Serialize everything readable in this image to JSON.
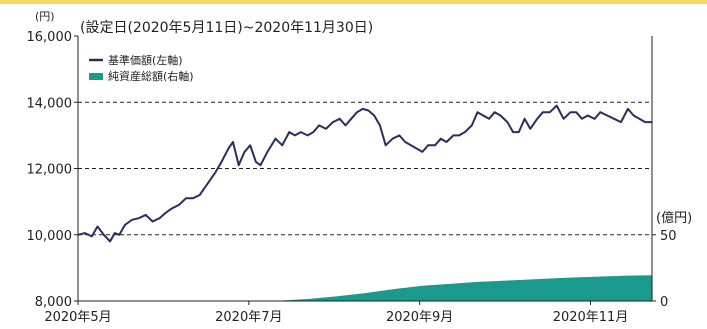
{
  "chart_data": {
    "type": "line",
    "title": "(設定日(2020年5月11日)~2020年11月30日)",
    "colors": {
      "nav_line": "#2a2f5e",
      "assets_area": "#1a9a8c",
      "grid": "#222222"
    },
    "left_axis": {
      "unit": "(円)",
      "ticks": [
        "16,000",
        "14,000",
        "12,000",
        "10,000",
        "8,000"
      ],
      "tick_values": [
        16000,
        14000,
        12000,
        10000,
        8000
      ],
      "range": [
        8000,
        16000
      ]
    },
    "right_axis": {
      "unit": "(億円)",
      "ticks": [
        "50",
        "0"
      ],
      "tick_values": [
        50,
        0
      ],
      "range": [
        0,
        50
      ]
    },
    "x_axis": {
      "ticks": [
        "2020年5月",
        "2020年7月",
        "2020年9月",
        "2020年11月"
      ],
      "tick_positions": [
        0.0,
        0.2976,
        0.5952,
        0.8929
      ]
    },
    "grid": {
      "horizontal_dashed": [
        10000,
        12000,
        14000
      ]
    },
    "legend": {
      "placement": "top-left",
      "items": [
        {
          "label": "基準価額(左軸)",
          "kind": "line"
        },
        {
          "label": "純資産総額(右軸)",
          "kind": "area"
        }
      ]
    },
    "series": [
      {
        "name": "基準価額(左軸)",
        "axis": "left",
        "x": [
          0,
          0.012,
          0.024,
          0.034,
          0.045,
          0.056,
          0.064,
          0.072,
          0.082,
          0.094,
          0.106,
          0.118,
          0.13,
          0.142,
          0.152,
          0.164,
          0.176,
          0.188,
          0.2,
          0.212,
          0.224,
          0.232,
          0.24,
          0.25,
          0.262,
          0.27,
          0.28,
          0.29,
          0.3,
          0.31,
          0.318,
          0.33,
          0.344,
          0.356,
          0.368,
          0.378,
          0.388,
          0.4,
          0.41,
          0.42,
          0.432,
          0.444,
          0.456,
          0.466,
          0.476,
          0.486,
          0.496,
          0.506,
          0.516,
          0.526,
          0.536,
          0.548,
          0.56,
          0.57,
          0.58,
          0.59,
          0.6,
          0.61,
          0.622,
          0.632,
          0.642,
          0.654,
          0.664,
          0.674,
          0.686,
          0.696,
          0.706,
          0.716,
          0.726,
          0.736,
          0.748,
          0.758,
          0.768,
          0.778,
          0.788,
          0.8,
          0.81,
          0.822,
          0.834,
          0.846,
          0.858,
          0.868,
          0.878,
          0.888,
          0.9,
          0.91,
          0.922,
          0.934,
          0.946,
          0.958,
          0.968,
          0.978,
          0.988,
          1.0
        ],
        "values": [
          10000,
          10050,
          9950,
          10250,
          10000,
          9800,
          10050,
          10000,
          10300,
          10450,
          10500,
          10600,
          10400,
          10500,
          10650,
          10800,
          10900,
          11100,
          11100,
          11200,
          11500,
          11700,
          11900,
          12200,
          12600,
          12800,
          12100,
          12500,
          12700,
          12200,
          12100,
          12500,
          12900,
          12700,
          13100,
          13000,
          13100,
          13000,
          13100,
          13300,
          13200,
          13400,
          13500,
          13300,
          13500,
          13700,
          13800,
          13750,
          13600,
          13300,
          12700,
          12900,
          13000,
          12800,
          12700,
          12600,
          12500,
          12700,
          12700,
          12900,
          12800,
          13000,
          13000,
          13100,
          13300,
          13700,
          13600,
          13500,
          13700,
          13600,
          13400,
          13100,
          13100,
          13500,
          13200,
          13500,
          13700,
          13700,
          13900,
          13500,
          13700,
          13700,
          13500,
          13600,
          13500,
          13700,
          13600,
          13500,
          13400,
          13800,
          13600,
          13500,
          13400,
          13400
        ]
      },
      {
        "name": "純資産総額(右軸)",
        "axis": "right",
        "x": [
          0,
          0.3,
          0.35,
          0.4,
          0.45,
          0.5,
          0.55,
          0.6,
          0.65,
          0.7,
          0.75,
          0.8,
          0.85,
          0.9,
          0.95,
          1.0
        ],
        "values": [
          0,
          0,
          0.3,
          1.5,
          3.5,
          6,
          9,
          11.5,
          13,
          14.5,
          15.5,
          16.5,
          17.5,
          18.3,
          19,
          19.5
        ]
      }
    ]
  }
}
